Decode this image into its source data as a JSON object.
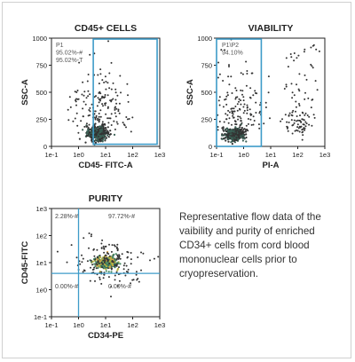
{
  "colors": {
    "gate": "#3d9bc8",
    "dots": "#333333",
    "dense": [
      "#2f6b5e",
      "#4f8f67",
      "#b6b23f",
      "#d7a24a"
    ],
    "axis": "#222222",
    "caption": "#333333"
  },
  "caption": "Representative flow data of the vaibility and purity of enriched CD34+ cells from cord blood mononuclear cells prior to cryopreservation.",
  "chart_data": [
    {
      "id": "cd45",
      "type": "scatter",
      "title": "CD45+ CELLS",
      "xlabel": "CD45- FITC-A",
      "ylabel": "SSC-A",
      "x_scale": "log",
      "xlim": [
        0.1,
        1000
      ],
      "ylim": [
        0,
        1000
      ],
      "x_ticks": [
        "1e-1",
        "1e0",
        "1e1",
        "1e2",
        "1e3"
      ],
      "y_ticks": [
        "0",
        "250",
        "500",
        "750",
        "1000"
      ],
      "gates": [
        {
          "name": "P1",
          "x_range": [
            3.5,
            800
          ],
          "y_range": [
            20,
            1000
          ]
        }
      ],
      "annotations": [
        "P1",
        "95.02%-#",
        "95.02%-T"
      ],
      "population": {
        "center_x": 5,
        "center_y": 120,
        "spread_x_decades": 0.35,
        "spread_y": 60
      }
    },
    {
      "id": "viability",
      "type": "scatter",
      "title": "VIABILITY",
      "xlabel": "PI-A",
      "ylabel": "SSC-A",
      "x_scale": "log",
      "xlim": [
        0.1,
        1000
      ],
      "ylim": [
        0,
        1000
      ],
      "x_ticks": [
        "1e-1",
        "1e0",
        "1e1",
        "1e2",
        "1e3"
      ],
      "y_ticks": [
        "0",
        "250",
        "500",
        "750",
        "1000"
      ],
      "gates": [
        {
          "name": "P1\\P2",
          "x_range": [
            0.1,
            4.5
          ],
          "y_range": [
            0,
            1000
          ]
        }
      ],
      "annotations": [
        "P1\\P2",
        "94.10%"
      ],
      "population": {
        "center_x": 0.45,
        "center_y": 110,
        "spread_x_decades": 0.35,
        "spread_y": 50
      }
    },
    {
      "id": "purity",
      "type": "scatter",
      "title": "PURITY",
      "xlabel": "CD34-PE",
      "ylabel": "CD45-FITC",
      "x_scale": "log",
      "y_scale": "log",
      "xlim": [
        0.1,
        1000
      ],
      "ylim": [
        0.1,
        1000
      ],
      "x_ticks": [
        "1e-1",
        "1e0",
        "1e1",
        "1e2",
        "1e3"
      ],
      "y_ticks": [
        "1e-1",
        "1e0",
        "1e1",
        "1e2",
        "1e3"
      ],
      "quadrant_lines": {
        "x": 1,
        "y": 4
      },
      "quadrants": {
        "upper_left": "2.28%-#",
        "upper_right": "97.72%-#",
        "lower_left": "0.00%-#",
        "lower_right": "0.00%-#"
      },
      "population": {
        "center_x": 10,
        "center_y": 10,
        "spread_x_decades": 0.35,
        "spread_y_decades": 0.2
      }
    }
  ]
}
